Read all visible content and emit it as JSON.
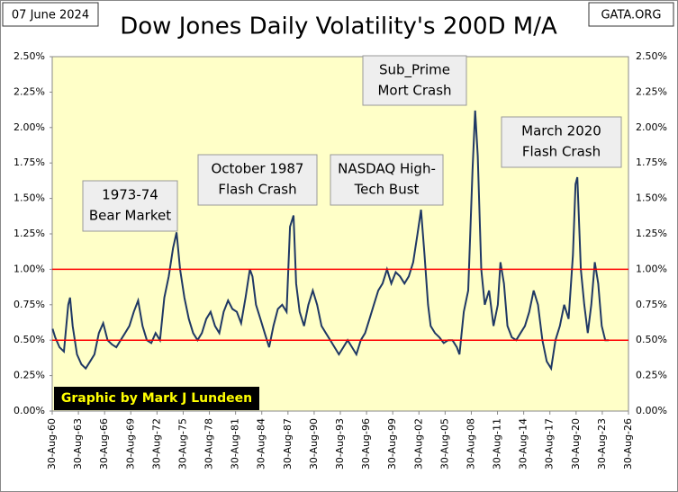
{
  "chart_data": {
    "type": "line",
    "title": "Dow Jones Daily Volatility's 200D M/A",
    "date": "07 June 2024",
    "source": "GATA.ORG",
    "credit": "Graphic by Mark J Lundeen",
    "xlim": [
      1960.66,
      2026.66
    ],
    "xticks": [
      {
        "value": 1960.66,
        "label": "30-Aug-60"
      },
      {
        "value": 1963.66,
        "label": "30-Aug-63"
      },
      {
        "value": 1966.66,
        "label": "30-Aug-66"
      },
      {
        "value": 1969.66,
        "label": "30-Aug-69"
      },
      {
        "value": 1972.66,
        "label": "30-Aug-72"
      },
      {
        "value": 1975.66,
        "label": "30-Aug-75"
      },
      {
        "value": 1978.66,
        "label": "30-Aug-78"
      },
      {
        "value": 1981.66,
        "label": "30-Aug-81"
      },
      {
        "value": 1984.66,
        "label": "30-Aug-84"
      },
      {
        "value": 1987.66,
        "label": "30-Aug-87"
      },
      {
        "value": 1990.66,
        "label": "30-Aug-90"
      },
      {
        "value": 1993.66,
        "label": "30-Aug-93"
      },
      {
        "value": 1996.66,
        "label": "30-Aug-96"
      },
      {
        "value": 1999.66,
        "label": "30-Aug-99"
      },
      {
        "value": 2002.66,
        "label": "30-Aug-02"
      },
      {
        "value": 2005.66,
        "label": "30-Aug-05"
      },
      {
        "value": 2008.66,
        "label": "30-Aug-08"
      },
      {
        "value": 2011.66,
        "label": "30-Aug-11"
      },
      {
        "value": 2014.66,
        "label": "30-Aug-14"
      },
      {
        "value": 2017.66,
        "label": "30-Aug-17"
      },
      {
        "value": 2020.66,
        "label": "30-Aug-20"
      },
      {
        "value": 2023.66,
        "label": "30-Aug-23"
      },
      {
        "value": 2026.66,
        "label": "30-Aug-26"
      }
    ],
    "ylim": [
      0,
      2.5
    ],
    "yticks": [
      {
        "value": 0,
        "label": "0.00%"
      },
      {
        "value": 0.25,
        "label": "0.25%"
      },
      {
        "value": 0.5,
        "label": "0.50%"
      },
      {
        "value": 0.75,
        "label": "0.75%"
      },
      {
        "value": 1,
        "label": "1.00%"
      },
      {
        "value": 1.25,
        "label": "1.25%"
      },
      {
        "value": 1.5,
        "label": "1.50%"
      },
      {
        "value": 1.75,
        "label": "1.75%"
      },
      {
        "value": 2,
        "label": "2.00%"
      },
      {
        "value": 2.25,
        "label": "2.25%"
      },
      {
        "value": 2.5,
        "label": "2.50%"
      }
    ],
    "y2lim": [
      0,
      2.5
    ],
    "hlines": [
      1.0,
      0.5
    ],
    "hline_color": "#ff0000",
    "series": [
      {
        "color": "#1f3864",
        "x": [
          1960.7,
          1961,
          1961.5,
          1962,
          1962.5,
          1962.7,
          1963,
          1963.5,
          1964,
          1964.5,
          1965,
          1965.5,
          1966,
          1966.5,
          1967,
          1967.5,
          1968,
          1968.5,
          1969,
          1969.5,
          1970,
          1970.5,
          1971,
          1971.5,
          1972,
          1972.5,
          1973,
          1973.5,
          1974,
          1974.5,
          1974.9,
          1975.3,
          1975.8,
          1976.3,
          1976.8,
          1977.3,
          1977.8,
          1978.3,
          1978.8,
          1979.3,
          1979.8,
          1980.3,
          1980.8,
          1981.3,
          1981.8,
          1982.3,
          1982.8,
          1983.3,
          1983.6,
          1984,
          1984.5,
          1985,
          1985.5,
          1986,
          1986.5,
          1987,
          1987.5,
          1987.9,
          1988.3,
          1988.6,
          1989,
          1989.5,
          1990,
          1990.5,
          1991,
          1991.5,
          1992,
          1992.5,
          1993,
          1993.5,
          1994,
          1994.5,
          1995,
          1995.5,
          1996,
          1996.5,
          1997,
          1997.5,
          1998,
          1998.5,
          1999,
          1999.5,
          2000,
          2000.5,
          2001,
          2001.5,
          2002,
          2002.5,
          2002.9,
          2003.3,
          2003.7,
          2004,
          2004.5,
          2005,
          2005.5,
          2006,
          2006.5,
          2007,
          2007.3,
          2007.8,
          2008.3,
          2008.8,
          2009.1,
          2009.4,
          2009.8,
          2010.2,
          2010.7,
          2011.2,
          2011.7,
          2012,
          2012.4,
          2012.8,
          2013.3,
          2013.8,
          2014.3,
          2014.8,
          2015.3,
          2015.8,
          2016.3,
          2016.8,
          2017.3,
          2017.8,
          2018.3,
          2018.8,
          2019.3,
          2019.8,
          2020.3,
          2020.6,
          2020.8,
          2021.2,
          2021.6,
          2022,
          2022.4,
          2022.8,
          2023.2,
          2023.6,
          2024,
          2024.4
        ],
        "values": [
          0.58,
          0.52,
          0.45,
          0.42,
          0.75,
          0.8,
          0.6,
          0.4,
          0.33,
          0.3,
          0.35,
          0.4,
          0.55,
          0.62,
          0.5,
          0.47,
          0.45,
          0.5,
          0.55,
          0.6,
          0.7,
          0.78,
          0.6,
          0.5,
          0.48,
          0.55,
          0.5,
          0.8,
          0.95,
          1.15,
          1.26,
          1.0,
          0.8,
          0.65,
          0.55,
          0.5,
          0.55,
          0.65,
          0.7,
          0.6,
          0.55,
          0.7,
          0.78,
          0.72,
          0.7,
          0.62,
          0.8,
          1.0,
          0.95,
          0.75,
          0.65,
          0.55,
          0.45,
          0.6,
          0.72,
          0.75,
          0.7,
          1.3,
          1.38,
          0.9,
          0.7,
          0.6,
          0.75,
          0.85,
          0.75,
          0.6,
          0.55,
          0.5,
          0.45,
          0.4,
          0.45,
          0.5,
          0.45,
          0.4,
          0.5,
          0.55,
          0.65,
          0.75,
          0.85,
          0.9,
          1.0,
          0.9,
          0.98,
          0.95,
          0.9,
          0.95,
          1.05,
          1.25,
          1.42,
          1.1,
          0.75,
          0.6,
          0.55,
          0.52,
          0.48,
          0.5,
          0.5,
          0.45,
          0.4,
          0.7,
          0.85,
          1.7,
          2.12,
          1.8,
          1.0,
          0.75,
          0.85,
          0.6,
          0.75,
          1.05,
          0.9,
          0.6,
          0.52,
          0.5,
          0.55,
          0.6,
          0.7,
          0.85,
          0.75,
          0.5,
          0.35,
          0.3,
          0.5,
          0.6,
          0.75,
          0.65,
          1.1,
          1.6,
          1.65,
          1.0,
          0.75,
          0.55,
          0.75,
          1.05,
          0.9,
          0.6,
          0.5,
          0.5
        ]
      }
    ],
    "annotations": [
      {
        "lines": [
          "1973-74",
          "Bear Market"
        ]
      },
      {
        "lines": [
          "October 1987",
          "Flash Crash"
        ]
      },
      {
        "lines": [
          "NASDAQ High-",
          "Tech Bust"
        ]
      },
      {
        "lines": [
          "Sub_Prime",
          "Mort Crash"
        ]
      },
      {
        "lines": [
          "March 2020",
          "Flash Crash"
        ]
      }
    ]
  }
}
